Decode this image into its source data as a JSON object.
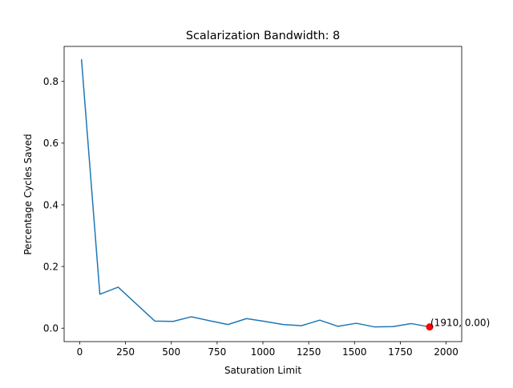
{
  "chart_data": {
    "type": "line",
    "title": "Scalarization Bandwidth: 8",
    "xlabel": "Saturation Limit",
    "ylabel": "Percentage Cycles Saved",
    "xlim": [
      -85,
      2085
    ],
    "ylim": [
      -0.0435,
      0.9135
    ],
    "xticks": [
      0,
      250,
      500,
      750,
      1000,
      1250,
      1500,
      1750,
      2000
    ],
    "xtick_labels": [
      "0",
      "250",
      "500",
      "750",
      "1000",
      "1250",
      "1500",
      "1750",
      "2000"
    ],
    "yticks": [
      0.0,
      0.2,
      0.4,
      0.6,
      0.8
    ],
    "ytick_labels": [
      "0.0",
      "0.2",
      "0.4",
      "0.6",
      "0.8"
    ],
    "grid": false,
    "series": [
      {
        "color": "#1f77b4",
        "x": [
          10,
          110,
          210,
          410,
          510,
          610,
          710,
          810,
          910,
          1010,
          1110,
          1210,
          1310,
          1410,
          1510,
          1610,
          1710,
          1810,
          1910
        ],
        "y": [
          0.87,
          0.11,
          0.133,
          0.023,
          0.022,
          0.037,
          0.024,
          0.012,
          0.031,
          0.022,
          0.012,
          0.008,
          0.026,
          0.006,
          0.016,
          0.004,
          0.005,
          0.015,
          0.004
        ]
      }
    ],
    "highlight": {
      "x": 1910,
      "y": 0.004,
      "color": "#ff0000",
      "label": "(1910, 0.00)"
    }
  }
}
